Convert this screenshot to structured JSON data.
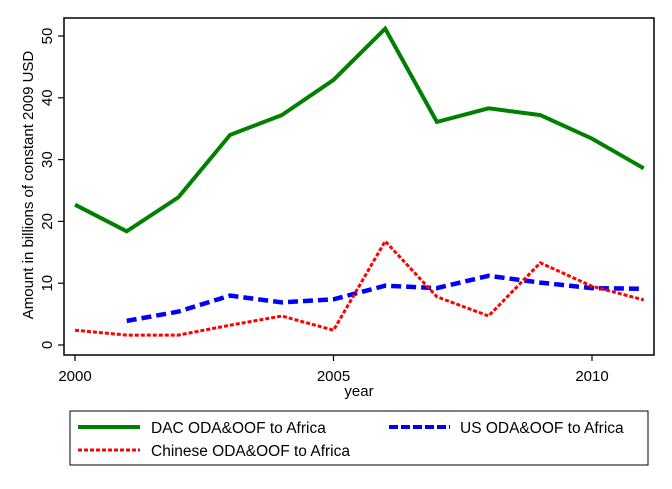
{
  "chart_data": {
    "type": "line",
    "title": "",
    "xlabel": "year",
    "ylabel": "Amount in billions of constant 2009 USD",
    "x": [
      2000,
      2001,
      2002,
      2003,
      2004,
      2005,
      2006,
      2007,
      2008,
      2009,
      2010,
      2011
    ],
    "xlim": [
      2000,
      2011
    ],
    "ylim": [
      0,
      50
    ],
    "xticks": [
      2000,
      2005,
      2010
    ],
    "xtick_labels": [
      "2000",
      "2005",
      "2010"
    ],
    "yticks": [
      0,
      10,
      20,
      30,
      40,
      50
    ],
    "ytick_labels": [
      "0",
      "10",
      "20",
      "30",
      "40",
      "50"
    ],
    "grid": false,
    "legend_position": "bottom",
    "series": [
      {
        "name": "DAC ODA&OOF to Africa",
        "color": "#008000",
        "style": "solid",
        "x": [
          2000,
          2001,
          2002,
          2003,
          2004,
          2005,
          2006,
          2007,
          2008,
          2009,
          2010,
          2011
        ],
        "values": [
          22.7,
          18.4,
          23.9,
          34.0,
          37.2,
          42.9,
          51.2,
          36.1,
          38.3,
          37.2,
          33.4,
          28.6
        ]
      },
      {
        "name": "US ODA&OOF to Africa",
        "color": "#0000ff",
        "style": "dashed",
        "x": [
          2001,
          2002,
          2003,
          2004,
          2005,
          2006,
          2007,
          2008,
          2009,
          2010,
          2011
        ],
        "values": [
          3.9,
          5.4,
          8.0,
          6.9,
          7.4,
          9.6,
          9.2,
          11.2,
          10.1,
          9.2,
          9.1
        ]
      },
      {
        "name": "Chinese ODA&OOF to Africa",
        "color": "#ff0000",
        "style": "dotted",
        "x": [
          2000,
          2001,
          2002,
          2003,
          2004,
          2005,
          2006,
          2007,
          2008,
          2009,
          2010,
          2011
        ],
        "values": [
          2.4,
          1.6,
          1.6,
          3.2,
          4.7,
          2.4,
          16.8,
          7.8,
          4.7,
          13.3,
          9.5,
          7.3
        ]
      }
    ]
  },
  "legend": {
    "items": [
      {
        "label": "DAC ODA&OOF to Africa"
      },
      {
        "label": "US ODA&OOF to Africa"
      },
      {
        "label": "Chinese ODA&OOF to Africa"
      }
    ]
  }
}
